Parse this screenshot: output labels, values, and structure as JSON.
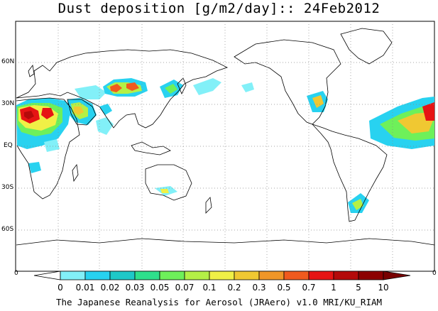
{
  "title": "Dust deposition [g/m2/day]:: 24Feb2012",
  "footer": "The Japanese Reanalysis for Aerosol (JRAero) v1.0 MRI/KU_RIAM",
  "lat_labels": [
    "60N",
    "30N",
    "EQ",
    "30S",
    "60S"
  ],
  "edge_labels": [
    "0",
    "0"
  ],
  "colorbar": {
    "ticks": [
      "0",
      "0.01",
      "0.02",
      "0.03",
      "0.05",
      "0.07",
      "0.1",
      "0.2",
      "0.3",
      "0.5",
      "0.7",
      "1",
      "5",
      "10"
    ],
    "colors": [
      "#ffffff",
      "#82f0f8",
      "#28d2f0",
      "#1ec8c8",
      "#2ee08c",
      "#6ef05a",
      "#b4f046",
      "#f0f046",
      "#f0c832",
      "#f09628",
      "#f05a1e",
      "#e61414",
      "#b40a0a",
      "#8c0000",
      "#780000"
    ]
  },
  "map": {
    "projection": "plate carree, centered 180E",
    "lat_range": [
      -90,
      90
    ],
    "features": [
      "coastlines",
      "dotted graticule 30°"
    ],
    "dust_regions": [
      "Sahara / West Africa",
      "Arabian Peninsula",
      "Taklimakan / Gobi",
      "East China Sea",
      "North Pacific",
      "Southwest US",
      "Caribbean / Central Atlantic",
      "Patagonia",
      "Australia interior"
    ]
  }
}
